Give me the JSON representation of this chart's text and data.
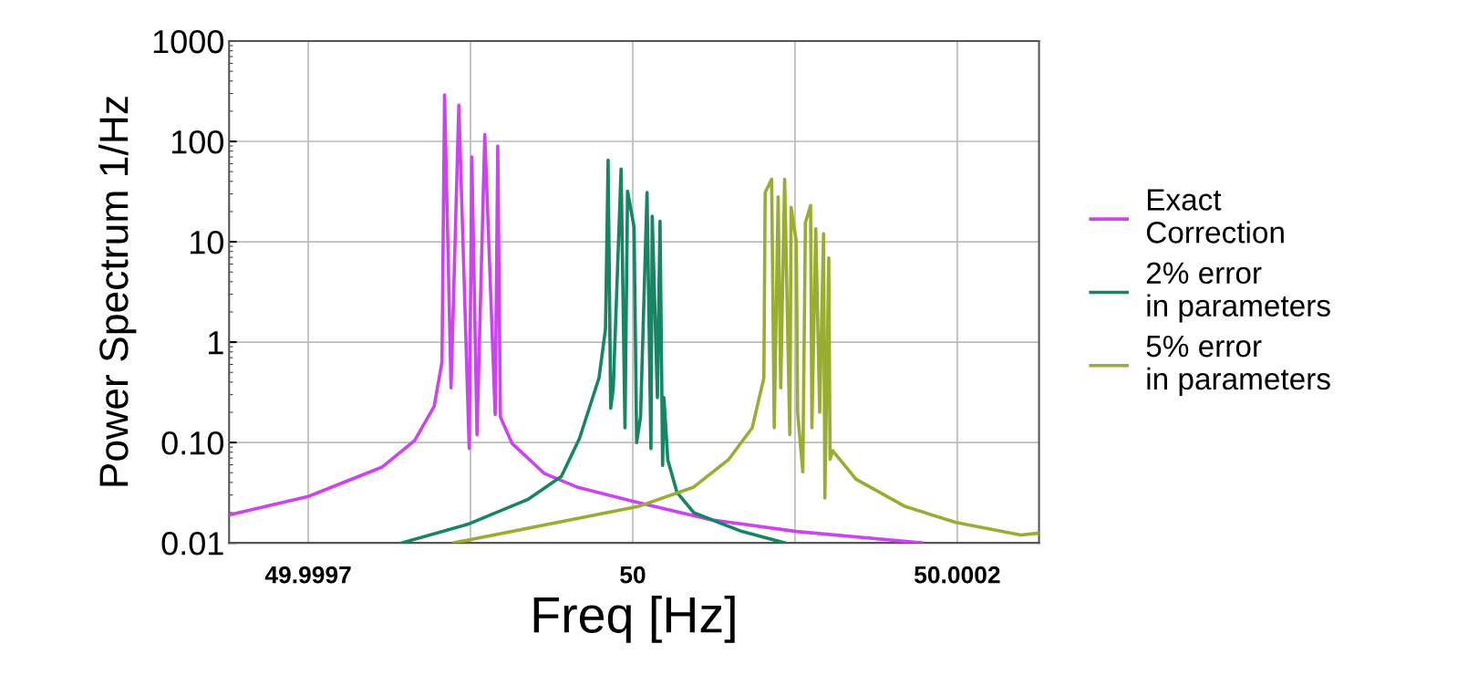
{
  "chart_data": {
    "type": "line",
    "xlabel": "Freq [Hz]",
    "ylabel": "Power Spectrum 1/Hz",
    "xlim": [
      49.999689,
      50.000313
    ],
    "ylim": [
      0.01,
      1000
    ],
    "log": "y",
    "xticks": [
      {
        "value": 49.99975,
        "label": "49.9997"
      },
      {
        "value": 49.999875,
        "label": null
      },
      {
        "value": 50,
        "label": "50"
      },
      {
        "value": 50.000125,
        "label": null
      },
      {
        "value": 50.00025,
        "label": "50.0002"
      }
    ],
    "yticks": [
      0.01,
      {
        "value": 0.1,
        "label": "0.10"
      },
      1,
      10,
      100,
      1000
    ],
    "grid": true,
    "legend": "right",
    "series": [
      {
        "name": "Exact\nCorrection",
        "color": "#cc44ee",
        "x": [
          49.999689,
          49.99975,
          49.999807,
          49.999832,
          49.999847,
          49.999853,
          49.999855,
          49.99986,
          49.999866,
          49.999874,
          49.999876,
          49.99988,
          49.999886,
          49.999894,
          49.999896,
          49.999898,
          49.999907,
          49.999932,
          49.999957,
          50.0,
          50.00006,
          50.000126,
          50.000223
        ],
        "values": [
          0.019,
          0.029,
          0.057,
          0.105,
          0.23,
          0.63,
          290,
          0.35,
          230,
          0.087,
          70,
          0.12,
          117,
          0.19,
          90,
          0.18,
          0.098,
          0.049,
          0.036,
          0.026,
          0.017,
          0.013,
          0.01
        ]
      },
      {
        "name": "2% error\nin parameters",
        "color": "#178563",
        "x": [
          49.999822,
          49.999874,
          49.999919,
          49.999945,
          49.999959,
          49.999974,
          49.999979,
          49.999981,
          49.999983,
          49.999985,
          49.999991,
          49.999994,
          49.999996,
          50.000001,
          50.000003,
          50.000006,
          50.000011,
          50.000014,
          50.000015,
          50.000019,
          50.000021,
          50.000023,
          50.000024,
          50.000027,
          50.000034,
          50.000047,
          50.000084,
          50.000117
        ],
        "values": [
          0.01,
          0.0155,
          0.027,
          0.046,
          0.11,
          0.44,
          1.35,
          65,
          0.22,
          0.35,
          53,
          0.14,
          32,
          14,
          0.1,
          0.18,
          31,
          0.087,
          18,
          0.28,
          16,
          0.059,
          0.28,
          0.067,
          0.032,
          0.02,
          0.013,
          0.01
        ]
      },
      {
        "name": "5% error\nin parameters",
        "color": "#9aad33",
        "x": [
          49.999862,
          50.000004,
          50.000047,
          50.000074,
          50.000092,
          50.000101,
          50.000102,
          50.000107,
          50.000109,
          50.000112,
          50.000114,
          50.000117,
          50.000121,
          50.000122,
          50.000126,
          50.000127,
          50.000131,
          50.000133,
          50.000137,
          50.000138,
          50.000141,
          50.000144,
          50.000147,
          50.000148,
          50.000151,
          50.000152,
          50.000154,
          50.000172,
          50.00021,
          50.000249,
          50.000299,
          50.000313
        ],
        "values": [
          0.01,
          0.023,
          0.036,
          0.068,
          0.14,
          0.44,
          31,
          42,
          0.14,
          28,
          0.35,
          42,
          0.12,
          22,
          10,
          0.2,
          0.051,
          15.5,
          23,
          0.14,
          13.5,
          0.2,
          12,
          0.028,
          6.9,
          0.068,
          0.083,
          0.043,
          0.023,
          0.016,
          0.012,
          0.0125
        ]
      }
    ]
  }
}
